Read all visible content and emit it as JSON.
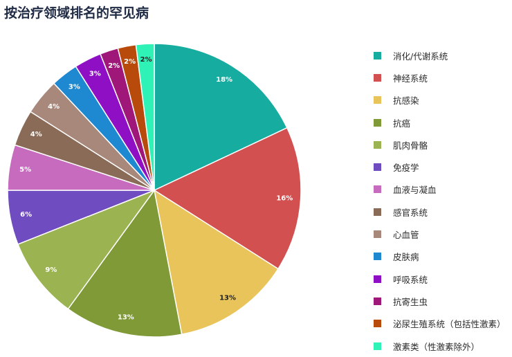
{
  "page": {
    "title": "按治疗领域排名的罕见病"
  },
  "chart_data": {
    "type": "pie",
    "title": "按治疗领域排名的罕见病",
    "legend_position": "right",
    "start_angle": "12 o'clock",
    "direction": "clockwise",
    "slices": [
      {
        "label": "消化/代谢系统",
        "value": 18,
        "value_label": "18%",
        "color": "#16ADA0",
        "label_color": "#ffffff"
      },
      {
        "label": "神经系统",
        "value": 16,
        "value_label": "16%",
        "color": "#D35050",
        "label_color": "#ffffff"
      },
      {
        "label": "抗感染",
        "value": 13,
        "value_label": "13%",
        "color": "#E8C45A",
        "label_color": "#222222"
      },
      {
        "label": "抗癌",
        "value": 13,
        "value_label": "13%",
        "color": "#7F9A36",
        "label_color": "#ffffff"
      },
      {
        "label": "肌肉骨骼",
        "value": 9,
        "value_label": "9%",
        "color": "#9BB350",
        "label_color": "#ffffff"
      },
      {
        "label": "免疫学",
        "value": 6,
        "value_label": "6%",
        "color": "#6F4CBF",
        "label_color": "#ffffff"
      },
      {
        "label": "血液与凝血",
        "value": 5,
        "value_label": "5%",
        "color": "#C66BBE",
        "label_color": "#ffffff"
      },
      {
        "label": "感官系统",
        "value": 4,
        "value_label": "4%",
        "color": "#8A6B57",
        "label_color": "#ffffff"
      },
      {
        "label": "心血管",
        "value": 4,
        "value_label": "4%",
        "color": "#A8887A",
        "label_color": "#ffffff"
      },
      {
        "label": "皮肤病",
        "value": 3,
        "value_label": "3%",
        "color": "#1E88D1",
        "label_color": "#ffffff"
      },
      {
        "label": "呼吸系统",
        "value": 3,
        "value_label": "3%",
        "color": "#8E0FC4",
        "label_color": "#ffffff"
      },
      {
        "label": "抗寄生虫",
        "value": 2,
        "value_label": "2%",
        "color": "#A0177A",
        "label_color": "#ffffff"
      },
      {
        "label": "泌尿生殖系统（包括性激素）",
        "value": 2,
        "value_label": "2%",
        "color": "#B84A0C",
        "label_color": "#ffffff"
      },
      {
        "label": "激素类（性激素除外）",
        "value": 2,
        "value_label": "2%",
        "color": "#2EF2B6",
        "label_color": "#222222"
      }
    ]
  }
}
